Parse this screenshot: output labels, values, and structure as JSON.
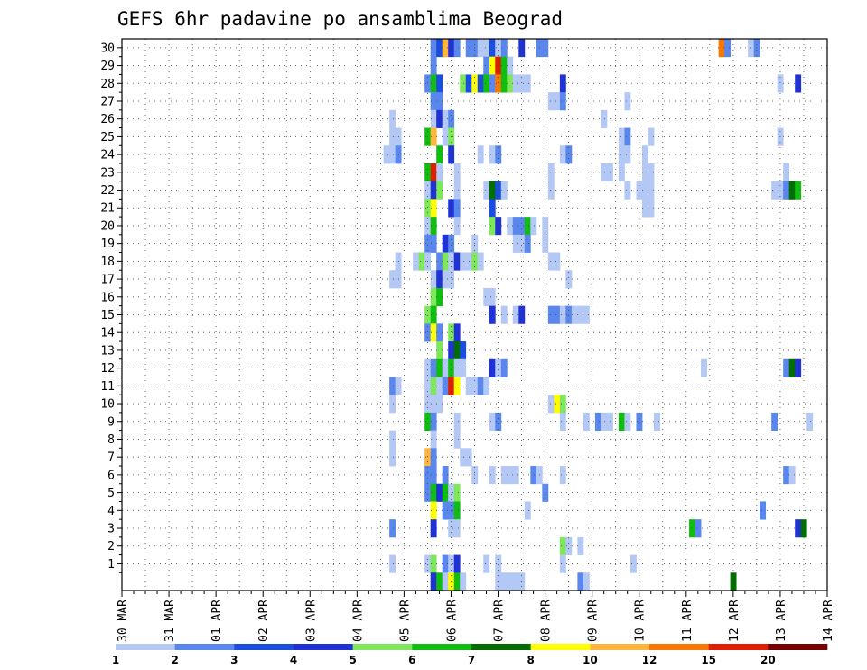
{
  "chart_data": {
    "type": "heatmap",
    "title": "GEFS 6hr padavine po ansamblima Beograd",
    "x_ticks": [
      "30 MAR",
      "31 MAR",
      "01 APR",
      "02 APR",
      "03 APR",
      "04 APR",
      "05 APR",
      "06 APR",
      "07 APR",
      "08 APR",
      "09 APR",
      "10 APR",
      "11 APR",
      "12 APR",
      "13 APR",
      "14 APR"
    ],
    "x_range": [
      "30 MAR 00z",
      "14 APR 00z"
    ],
    "x_step_hours": 6,
    "y_ticks": [
      "1",
      "2",
      "3",
      "4",
      "5",
      "6",
      "7",
      "8",
      "9",
      "10",
      "11",
      "12",
      "13",
      "14",
      "15",
      "16",
      "17",
      "18",
      "19",
      "20",
      "21",
      "22",
      "23",
      "24",
      "25",
      "26",
      "27",
      "28",
      "29",
      "30"
    ],
    "y_range": [
      0,
      30
    ],
    "grid": true,
    "colorbar": {
      "position": "bottom",
      "labels": [
        "1",
        "2",
        "3",
        "4",
        "5",
        "6",
        "7",
        "8",
        "10",
        "12",
        "15",
        "20"
      ],
      "colors": [
        "#b4c8f5",
        "#5a87ee",
        "#1a4ee0",
        "#1e32d8",
        "#7ee85a",
        "#10be10",
        "#006e00",
        "#ffff00",
        "#ffb43c",
        "#fa7800",
        "#e11e00",
        "#780000"
      ]
    },
    "cells": [
      {
        "m": 30,
        "t": [
          [
            53,
            1
          ],
          [
            54,
            2
          ],
          [
            55,
            8
          ],
          [
            56,
            3
          ],
          [
            57,
            1
          ],
          [
            59,
            1
          ],
          [
            60,
            1
          ],
          [
            61,
            0
          ],
          [
            62,
            0
          ],
          [
            63,
            2
          ],
          [
            64,
            0
          ],
          [
            65,
            1
          ],
          [
            68,
            3
          ],
          [
            71,
            1
          ],
          [
            72,
            1
          ],
          [
            102,
            9
          ],
          [
            103,
            1
          ],
          [
            107,
            0
          ],
          [
            108,
            1
          ]
        ]
      },
      {
        "m": 29,
        "t": [
          [
            53,
            1
          ],
          [
            62,
            1
          ],
          [
            63,
            7
          ],
          [
            64,
            10
          ],
          [
            65,
            5
          ],
          [
            66,
            0
          ]
        ]
      },
      {
        "m": 28,
        "t": [
          [
            52,
            1
          ],
          [
            53,
            5
          ],
          [
            54,
            2
          ],
          [
            58,
            4
          ],
          [
            59,
            2
          ],
          [
            60,
            7
          ],
          [
            61,
            2
          ],
          [
            62,
            5
          ],
          [
            63,
            1
          ],
          [
            64,
            9
          ],
          [
            65,
            5
          ],
          [
            66,
            4
          ],
          [
            67,
            0
          ],
          [
            68,
            0
          ],
          [
            69,
            0
          ],
          [
            75,
            3
          ],
          [
            112,
            0
          ],
          [
            115,
            3
          ]
        ]
      },
      {
        "m": 27,
        "t": [
          [
            53,
            1
          ],
          [
            54,
            1
          ],
          [
            73,
            0
          ],
          [
            74,
            0
          ],
          [
            75,
            1
          ],
          [
            86,
            0
          ]
        ]
      },
      {
        "m": 26,
        "t": [
          [
            46,
            0
          ],
          [
            53,
            0
          ],
          [
            54,
            3
          ],
          [
            55,
            0
          ],
          [
            56,
            1
          ],
          [
            82,
            0
          ]
        ]
      },
      {
        "m": 25,
        "t": [
          [
            46,
            0
          ],
          [
            47,
            0
          ],
          [
            52,
            5
          ],
          [
            53,
            8
          ],
          [
            55,
            0
          ],
          [
            56,
            4
          ],
          [
            85,
            0
          ],
          [
            86,
            1
          ],
          [
            90,
            0
          ],
          [
            112,
            0
          ]
        ]
      },
      {
        "m": 24,
        "t": [
          [
            45,
            0
          ],
          [
            46,
            0
          ],
          [
            47,
            1
          ],
          [
            54,
            5
          ],
          [
            56,
            3
          ],
          [
            61,
            0
          ],
          [
            63,
            0
          ],
          [
            64,
            1
          ],
          [
            75,
            0
          ],
          [
            76,
            1
          ],
          [
            85,
            0
          ],
          [
            86,
            0
          ],
          [
            89,
            0
          ]
        ]
      },
      {
        "m": 23,
        "t": [
          [
            52,
            5
          ],
          [
            53,
            10
          ],
          [
            54,
            0
          ],
          [
            57,
            0
          ],
          [
            73,
            0
          ],
          [
            82,
            0
          ],
          [
            83,
            0
          ],
          [
            85,
            0
          ],
          [
            89,
            0
          ],
          [
            90,
            0
          ],
          [
            113,
            0
          ]
        ]
      },
      {
        "m": 22,
        "t": [
          [
            52,
            0
          ],
          [
            53,
            3
          ],
          [
            54,
            4
          ],
          [
            57,
            0
          ],
          [
            62,
            0
          ],
          [
            63,
            6
          ],
          [
            64,
            2
          ],
          [
            65,
            0
          ],
          [
            73,
            0
          ],
          [
            86,
            0
          ],
          [
            88,
            0
          ],
          [
            89,
            0
          ],
          [
            90,
            0
          ],
          [
            111,
            0
          ],
          [
            112,
            0
          ],
          [
            113,
            1
          ],
          [
            114,
            6
          ],
          [
            115,
            5
          ]
        ]
      },
      {
        "m": 21,
        "t": [
          [
            52,
            4
          ],
          [
            53,
            7
          ],
          [
            56,
            3
          ],
          [
            57,
            1
          ],
          [
            63,
            2
          ],
          [
            89,
            0
          ],
          [
            90,
            0
          ]
        ]
      },
      {
        "m": 20,
        "t": [
          [
            52,
            0
          ],
          [
            53,
            5
          ],
          [
            57,
            0
          ],
          [
            63,
            4
          ],
          [
            64,
            3
          ],
          [
            66,
            0
          ],
          [
            67,
            1
          ],
          [
            68,
            1
          ],
          [
            69,
            5
          ],
          [
            70,
            0
          ],
          [
            72,
            0
          ]
        ]
      },
      {
        "m": 19,
        "t": [
          [
            52,
            1
          ],
          [
            53,
            1
          ],
          [
            55,
            3
          ],
          [
            56,
            1
          ],
          [
            60,
            0
          ],
          [
            67,
            0
          ],
          [
            68,
            0
          ],
          [
            69,
            1
          ],
          [
            72,
            0
          ]
        ]
      },
      {
        "m": 18,
        "t": [
          [
            47,
            0
          ],
          [
            50,
            0
          ],
          [
            51,
            4
          ],
          [
            52,
            0
          ],
          [
            54,
            1
          ],
          [
            55,
            4
          ],
          [
            56,
            0
          ],
          [
            57,
            3
          ],
          [
            58,
            0
          ],
          [
            59,
            0
          ],
          [
            60,
            4
          ],
          [
            61,
            0
          ],
          [
            73,
            0
          ],
          [
            74,
            0
          ]
        ]
      },
      {
        "m": 17,
        "t": [
          [
            46,
            0
          ],
          [
            47,
            0
          ],
          [
            53,
            0
          ],
          [
            54,
            3
          ],
          [
            55,
            0
          ],
          [
            56,
            0
          ],
          [
            76,
            0
          ]
        ]
      },
      {
        "m": 16,
        "t": [
          [
            53,
            4
          ],
          [
            54,
            5
          ],
          [
            62,
            0
          ],
          [
            63,
            0
          ]
        ]
      },
      {
        "m": 15,
        "t": [
          [
            52,
            4
          ],
          [
            53,
            5
          ],
          [
            63,
            3
          ],
          [
            65,
            0
          ],
          [
            67,
            0
          ],
          [
            68,
            3
          ],
          [
            73,
            1
          ],
          [
            74,
            1
          ],
          [
            75,
            0
          ],
          [
            76,
            1
          ],
          [
            77,
            0
          ],
          [
            78,
            0
          ],
          [
            79,
            0
          ]
        ]
      },
      {
        "m": 14,
        "t": [
          [
            52,
            1
          ],
          [
            53,
            7
          ],
          [
            54,
            1
          ],
          [
            56,
            4
          ],
          [
            57,
            3
          ]
        ]
      },
      {
        "m": 13,
        "t": [
          [
            54,
            4
          ],
          [
            56,
            3
          ],
          [
            57,
            6
          ],
          [
            58,
            2
          ]
        ]
      },
      {
        "m": 12,
        "t": [
          [
            52,
            0
          ],
          [
            53,
            1
          ],
          [
            54,
            5
          ],
          [
            55,
            0
          ],
          [
            56,
            5
          ],
          [
            57,
            0
          ],
          [
            58,
            0
          ],
          [
            63,
            3
          ],
          [
            64,
            0
          ],
          [
            65,
            1
          ],
          [
            99,
            0
          ],
          [
            113,
            1
          ],
          [
            114,
            6
          ],
          [
            115,
            3
          ]
        ]
      },
      {
        "m": 11,
        "t": [
          [
            46,
            1
          ],
          [
            47,
            0
          ],
          [
            52,
            0
          ],
          [
            53,
            4
          ],
          [
            54,
            0
          ],
          [
            55,
            1
          ],
          [
            56,
            10
          ],
          [
            57,
            7
          ],
          [
            59,
            0
          ],
          [
            60,
            0
          ],
          [
            61,
            1
          ],
          [
            62,
            0
          ]
        ]
      },
      {
        "m": 10,
        "t": [
          [
            46,
            0
          ],
          [
            52,
            0
          ],
          [
            53,
            0
          ],
          [
            54,
            0
          ],
          [
            73,
            0
          ],
          [
            74,
            7
          ],
          [
            75,
            4
          ]
        ]
      },
      {
        "m": 9,
        "t": [
          [
            52,
            5
          ],
          [
            53,
            1
          ],
          [
            57,
            0
          ],
          [
            63,
            0
          ],
          [
            64,
            1
          ],
          [
            75,
            0
          ],
          [
            79,
            0
          ],
          [
            81,
            1
          ],
          [
            82,
            0
          ],
          [
            83,
            0
          ],
          [
            85,
            5
          ],
          [
            86,
            0
          ],
          [
            88,
            1
          ],
          [
            91,
            0
          ],
          [
            111,
            1
          ],
          [
            117,
            0
          ]
        ]
      },
      {
        "m": 8,
        "t": [
          [
            46,
            0
          ],
          [
            53,
            0
          ],
          [
            57,
            0
          ]
        ]
      },
      {
        "m": 7,
        "t": [
          [
            46,
            0
          ],
          [
            52,
            8
          ],
          [
            53,
            1
          ],
          [
            58,
            0
          ],
          [
            59,
            0
          ]
        ]
      },
      {
        "m": 6,
        "t": [
          [
            52,
            1
          ],
          [
            53,
            1
          ],
          [
            55,
            1
          ],
          [
            60,
            0
          ],
          [
            63,
            0
          ],
          [
            65,
            0
          ],
          [
            66,
            0
          ],
          [
            67,
            0
          ],
          [
            70,
            1
          ],
          [
            71,
            0
          ],
          [
            75,
            0
          ],
          [
            113,
            1
          ],
          [
            114,
            0
          ]
        ]
      },
      {
        "m": 5,
        "t": [
          [
            52,
            1
          ],
          [
            53,
            5
          ],
          [
            54,
            3
          ],
          [
            55,
            5
          ],
          [
            56,
            0
          ],
          [
            57,
            4
          ],
          [
            72,
            1
          ]
        ]
      },
      {
        "m": 4,
        "t": [
          [
            53,
            7
          ],
          [
            55,
            1
          ],
          [
            56,
            1
          ],
          [
            57,
            5
          ],
          [
            69,
            0
          ],
          [
            109,
            1
          ]
        ]
      },
      {
        "m": 3,
        "t": [
          [
            46,
            1
          ],
          [
            53,
            3
          ],
          [
            56,
            0
          ],
          [
            57,
            0
          ],
          [
            97,
            5
          ],
          [
            98,
            1
          ],
          [
            115,
            3
          ],
          [
            116,
            6
          ]
        ]
      },
      {
        "m": 2,
        "t": [
          [
            75,
            4
          ],
          [
            76,
            0
          ],
          [
            78,
            0
          ]
        ]
      },
      {
        "m": 1,
        "t": [
          [
            46,
            0
          ],
          [
            52,
            0
          ],
          [
            53,
            4
          ],
          [
            55,
            1
          ],
          [
            56,
            0
          ],
          [
            57,
            3
          ],
          [
            62,
            0
          ],
          [
            64,
            0
          ],
          [
            75,
            0
          ],
          [
            87,
            0
          ]
        ]
      },
      {
        "m": 0,
        "t": [
          [
            53,
            3
          ],
          [
            54,
            5
          ],
          [
            55,
            0
          ],
          [
            56,
            7
          ],
          [
            57,
            5
          ],
          [
            58,
            0
          ],
          [
            64,
            0
          ],
          [
            65,
            0
          ],
          [
            66,
            0
          ],
          [
            67,
            0
          ],
          [
            68,
            0
          ],
          [
            78,
            1
          ],
          [
            79,
            0
          ],
          [
            104,
            6
          ]
        ]
      }
    ]
  }
}
